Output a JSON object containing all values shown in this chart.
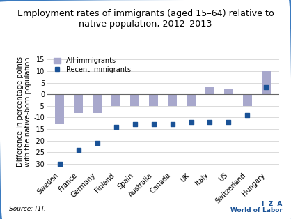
{
  "title": "Employment rates of immigrants (aged 15–64) relative to\nnative population, 2012–2013",
  "ylabel": "Difference in percentage points\nwith the native-born population",
  "source": "Source: [1].",
  "iza_line1": "I  Z  A",
  "iza_line2": "World of Labor",
  "categories": [
    "Sweden",
    "France",
    "Germany",
    "Finland",
    "Spain",
    "Australia",
    "Canada",
    "UK",
    "Italy",
    "US",
    "Switzerland",
    "Hungary"
  ],
  "all_immigrants": [
    -13,
    -8,
    -8,
    -5,
    -5,
    -5,
    -5,
    -5,
    3,
    2.5,
    -5,
    10
  ],
  "recent_immigrants": [
    -30,
    -24,
    -21,
    -14,
    -13,
    -13,
    -13,
    -12,
    -12,
    -12,
    -9,
    3
  ],
  "bar_color": "#a8a8cc",
  "dot_color": "#1a5296",
  "border_color": "#3a7abf",
  "ylim": [
    -33,
    18
  ],
  "yticks": [
    -30,
    -25,
    -20,
    -15,
    -10,
    -5,
    0,
    5,
    10,
    15
  ],
  "background_color": "#ffffff",
  "legend_all": "All immigrants",
  "legend_recent": "Recent immigrants",
  "title_fontsize": 9.2,
  "tick_fontsize": 7.0,
  "label_fontsize": 7.2,
  "legend_fontsize": 7.0
}
